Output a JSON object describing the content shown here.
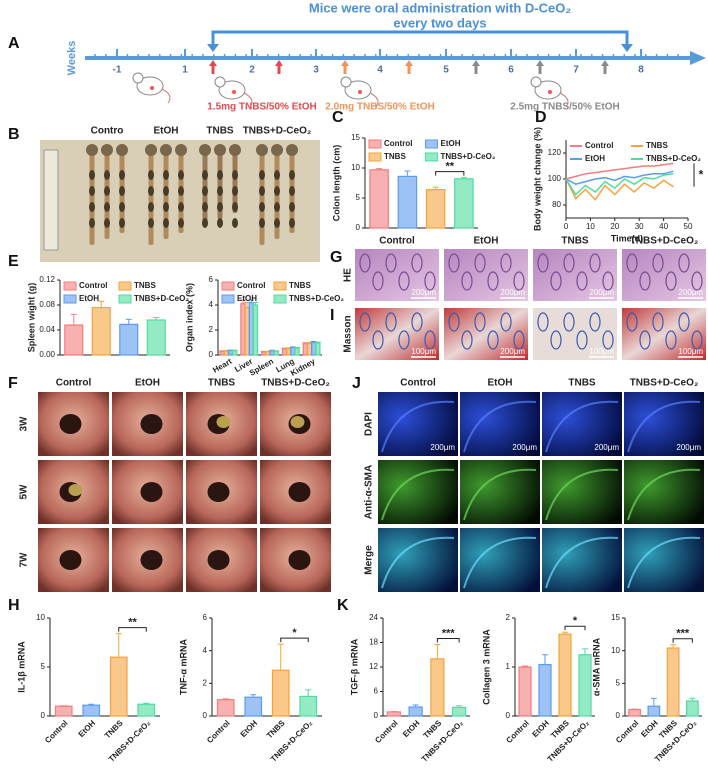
{
  "timeline": {
    "panel": "A",
    "title": "Mice were oral administration with D-CeO₂",
    "subtitle": "every two days",
    "axis_label": "Weeks",
    "ticks": [
      "-1",
      "1",
      "2",
      "3",
      "4",
      "5",
      "6",
      "7",
      "8"
    ],
    "doses": [
      {
        "text": "1.5mg TNBS/50% EtOH",
        "color": "#e5484d"
      },
      {
        "text": "2.0mg TNBS/50% EtOH",
        "color": "#f0955a"
      },
      {
        "text": "2.5mg TNBS/50% EtOH",
        "color": "#8a8a8a"
      }
    ]
  },
  "photo": {
    "panel": "B",
    "groups": [
      "Contro",
      "EtOH",
      "TNBS",
      "TNBS+D-CeO₂"
    ]
  },
  "histology": {
    "panel_g": "G",
    "panel_i": "I",
    "columns": [
      "Control",
      "EtOH",
      "TNBS",
      "TNBS+D-CeO₂"
    ],
    "rows": [
      "HE",
      "Masson"
    ],
    "scales": [
      [
        "200μm",
        "200μm",
        "200μm",
        "200μm"
      ],
      [
        "100μm",
        "200μm",
        "100μm",
        "100μm"
      ]
    ]
  },
  "endoscopy": {
    "panel": "F",
    "columns": [
      "Control",
      "EtOH",
      "TNBS",
      "TNBS+D-CeO₂"
    ],
    "rows": [
      "3W",
      "5W",
      "7W"
    ]
  },
  "fluorescence": {
    "panel": "J",
    "columns": [
      "Control",
      "EtOH",
      "TNBS",
      "TNBS+D-CeO₂"
    ],
    "rows": [
      "DAPI",
      "Anti-α-SMA",
      "Merge"
    ],
    "scales": [
      "200μm",
      "200μm",
      "200μm",
      "200μm"
    ]
  },
  "chart_data": [
    {
      "type": "bar",
      "panel": "C",
      "ylabel": "Colon length (cm)",
      "ylim": [
        0,
        15
      ],
      "yticks": [
        0,
        5,
        10,
        15
      ],
      "series": [
        {
          "name": "Control",
          "color": "#f47c7c",
          "values": [
            9.7
          ],
          "errors": [
            0.2
          ]
        },
        {
          "name": "EtOH",
          "color": "#5b9bf0",
          "values": [
            8.6
          ],
          "errors": [
            0.9
          ]
        },
        {
          "name": "TNBS",
          "color": "#f5a33c",
          "values": [
            6.4
          ],
          "errors": [
            0.4
          ]
        },
        {
          "name": "TNBS+D-CeO₂",
          "color": "#4fdca0",
          "values": [
            8.2
          ],
          "errors": [
            0.2
          ]
        }
      ],
      "annotations": [
        {
          "text": "**",
          "between": [
            "TNBS",
            "TNBS+D-CeO₂"
          ]
        }
      ]
    },
    {
      "type": "line",
      "panel": "D",
      "xlabel": "Time(d)",
      "ylabel": "Body weight change (%)",
      "xlim": [
        0,
        50
      ],
      "xticks": [
        0,
        10,
        20,
        30,
        40,
        50
      ],
      "ylim": [
        70,
        130
      ],
      "yticks": [
        80,
        100,
        120
      ],
      "x": [
        0,
        4,
        8,
        12,
        16,
        20,
        24,
        28,
        32,
        36,
        40,
        44
      ],
      "series": [
        {
          "name": "Control",
          "color": "#f47c7c",
          "values": [
            100,
            102,
            104,
            105,
            106,
            107,
            108,
            109,
            110,
            110,
            111,
            112
          ]
        },
        {
          "name": "TNBS",
          "color": "#f5a33c",
          "values": [
            100,
            85,
            92,
            84,
            95,
            88,
            96,
            90,
            97,
            93,
            99,
            94
          ]
        },
        {
          "name": "EtOH",
          "color": "#5b9bf0",
          "values": [
            100,
            96,
            98,
            100,
            101,
            99,
            102,
            101,
            103,
            104,
            104,
            106
          ]
        },
        {
          "name": "TNBS+D-CeO₂",
          "color": "#4fdca0",
          "values": [
            100,
            88,
            95,
            90,
            98,
            93,
            100,
            96,
            101,
            100,
            103,
            104
          ]
        }
      ],
      "annotations": [
        {
          "text": "*"
        }
      ]
    },
    {
      "type": "bar",
      "panel": "E",
      "ylabel": "Spleen wight (g)",
      "ylim": [
        0,
        0.12
      ],
      "yticks": [
        {
          "value": 0,
          "label": "0.00"
        },
        0.04,
        0.08,
        0.12
      ],
      "series": [
        {
          "name": "Control",
          "color": "#f47c7c",
          "values": [
            0.048
          ],
          "errors": [
            0.017
          ]
        },
        {
          "name": "TNBS",
          "color": "#f5a33c",
          "values": [
            0.076
          ],
          "errors": [
            0.01
          ]
        },
        {
          "name": "EtOH",
          "color": "#5b9bf0",
          "values": [
            0.049
          ],
          "errors": [
            0.008
          ]
        },
        {
          "name": "TNBS+D-CeO₂",
          "color": "#4fdca0",
          "values": [
            0.056
          ],
          "errors": [
            0.004
          ]
        }
      ]
    },
    {
      "type": "bar",
      "ylabel": "Organ index (%)",
      "ylim": [
        0,
        6
      ],
      "yticks": [
        0,
        2,
        4,
        6
      ],
      "categories": [
        "Heart",
        "Liver",
        "Spleen",
        "Lung",
        "Kidney"
      ],
      "series": [
        {
          "name": "Control",
          "color": "#f47c7c",
          "values": [
            0.3,
            4.1,
            0.25,
            0.5,
            0.9
          ],
          "errors": [
            0.03,
            0.3,
            0.03,
            0.05,
            0.08
          ]
        },
        {
          "name": "TNBS",
          "color": "#f5a33c",
          "values": [
            0.32,
            3.8,
            0.27,
            0.52,
            0.92
          ],
          "errors": [
            0.03,
            0.4,
            0.03,
            0.05,
            0.08
          ]
        },
        {
          "name": "EtOH",
          "color": "#5b9bf0",
          "values": [
            0.36,
            4.2,
            0.35,
            0.6,
            1.0
          ],
          "errors": [
            0.03,
            0.2,
            0.03,
            0.05,
            0.08
          ]
        },
        {
          "name": "TNBS+D-CeO₂",
          "color": "#4fdca0",
          "values": [
            0.35,
            4.0,
            0.3,
            0.55,
            0.95
          ],
          "errors": [
            0.03,
            0.2,
            0.03,
            0.05,
            0.08
          ]
        }
      ]
    },
    {
      "type": "bar",
      "panel": "H",
      "ylabel": "IL-1β mRNA",
      "ylim": [
        0,
        10
      ],
      "yticks": [
        0,
        5,
        10
      ],
      "categories": [
        "Control",
        "EtOH",
        "TNBS",
        "TNBS+D-CeO₂"
      ],
      "values": [
        1.0,
        1.1,
        6.0,
        1.2
      ],
      "errors": [
        0.05,
        0.1,
        2.4,
        0.1
      ],
      "colors": [
        "#f47c7c",
        "#5b9bf0",
        "#f5a33c",
        "#4fdca0"
      ],
      "annotations": [
        {
          "text": "**",
          "between": [
            "TNBS",
            "TNBS+D-CeO₂"
          ]
        }
      ]
    },
    {
      "type": "bar",
      "ylabel": "TNF-α mRNA",
      "ylim": [
        0,
        6
      ],
      "yticks": [
        0,
        2,
        4,
        6
      ],
      "categories": [
        "Control",
        "EtOH",
        "TNBS",
        "TNBS+D-CeO₂"
      ],
      "values": [
        1.0,
        1.15,
        2.8,
        1.2
      ],
      "errors": [
        0.05,
        0.15,
        1.6,
        0.4
      ],
      "colors": [
        "#f47c7c",
        "#5b9bf0",
        "#f5a33c",
        "#4fdca0"
      ],
      "annotations": [
        {
          "text": "*",
          "between": [
            "TNBS",
            "TNBS+D-CeO₂"
          ]
        }
      ]
    },
    {
      "type": "bar",
      "panel": "K",
      "ylabel": "TGF-β mRNA",
      "ylim": [
        0,
        24
      ],
      "yticks": [
        0,
        6,
        12,
        18,
        24
      ],
      "categories": [
        "Control",
        "EtOH",
        "TNBS",
        "TNBS+D-CeO₂"
      ],
      "values": [
        1.0,
        2.2,
        14.0,
        2.1
      ],
      "errors": [
        0.1,
        0.5,
        3.5,
        0.4
      ],
      "colors": [
        "#f47c7c",
        "#5b9bf0",
        "#f5a33c",
        "#4fdca0"
      ],
      "annotations": [
        {
          "text": "***",
          "between": [
            "TNBS",
            "TNBS+D-CeO₂"
          ]
        }
      ]
    },
    {
      "type": "bar",
      "ylabel": "Collagen 3 mRNA",
      "ylim": [
        0,
        2
      ],
      "yticks": [
        0,
        1,
        2
      ],
      "categories": [
        "Control",
        "EtOH",
        "TNBS",
        "TNBS+D-CeO₂"
      ],
      "values": [
        1.0,
        1.05,
        1.67,
        1.25
      ],
      "errors": [
        0.02,
        0.2,
        0.04,
        0.12
      ],
      "colors": [
        "#f47c7c",
        "#5b9bf0",
        "#f5a33c",
        "#4fdca0"
      ],
      "annotations": [
        {
          "text": "*",
          "between": [
            "TNBS",
            "TNBS+D-CeO₂"
          ]
        }
      ]
    },
    {
      "type": "bar",
      "ylabel": "α-SMA mRNA",
      "ylim": [
        0,
        15
      ],
      "yticks": [
        0,
        5,
        10,
        15
      ],
      "categories": [
        "Control",
        "EtOH",
        "TNBS",
        "TNBS+D-CeO₂"
      ],
      "values": [
        1.0,
        1.5,
        10.4,
        2.3
      ],
      "errors": [
        0.05,
        1.2,
        0.5,
        0.4
      ],
      "colors": [
        "#f47c7c",
        "#5b9bf0",
        "#f5a33c",
        "#4fdca0"
      ],
      "annotations": [
        {
          "text": "***",
          "between": [
            "TNBS",
            "TNBS+D-CeO₂"
          ]
        }
      ]
    }
  ]
}
